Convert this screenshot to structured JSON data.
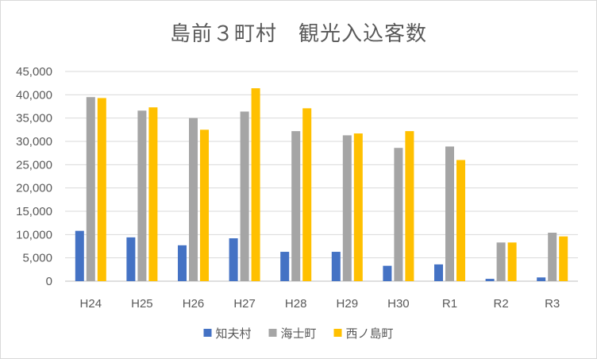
{
  "chart_data": {
    "type": "bar",
    "title": "島前３町村　観光入込客数",
    "categories": [
      "H24",
      "H25",
      "H26",
      "H27",
      "H28",
      "H29",
      "H30",
      "R1",
      "R2",
      "R3"
    ],
    "series": [
      {
        "name": "知夫村",
        "color": "#4472c4",
        "values": [
          10800,
          9400,
          7700,
          9200,
          6300,
          6300,
          3300,
          3600,
          500,
          800
        ]
      },
      {
        "name": "海士町",
        "color": "#a5a5a5",
        "values": [
          39500,
          36600,
          35000,
          36400,
          32200,
          31300,
          28600,
          28900,
          8300,
          10400
        ]
      },
      {
        "name": "西ノ島町",
        "color": "#ffc000",
        "values": [
          39300,
          37300,
          32500,
          41400,
          37100,
          31700,
          32200,
          26000,
          8300,
          9600
        ]
      }
    ],
    "ylim": [
      0,
      45000
    ],
    "y_ticks": [
      "0",
      "5,000",
      "10,000",
      "15,000",
      "20,000",
      "25,000",
      "30,000",
      "35,000",
      "40,000",
      "45,000"
    ],
    "y_tick_values": [
      0,
      5000,
      10000,
      15000,
      20000,
      25000,
      30000,
      35000,
      40000,
      45000
    ],
    "grid": true,
    "legend_position": "bottom",
    "xlabel": "",
    "ylabel": ""
  }
}
